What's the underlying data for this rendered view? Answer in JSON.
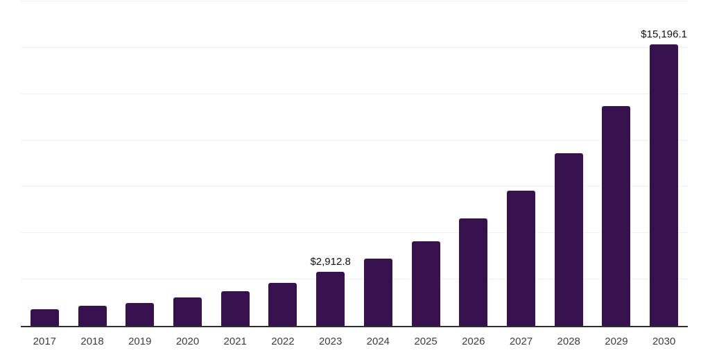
{
  "chart_data": {
    "type": "bar",
    "title": "",
    "xlabel": "",
    "ylabel": "",
    "categories": [
      "2017",
      "2018",
      "2019",
      "2020",
      "2021",
      "2022",
      "2023",
      "2024",
      "2025",
      "2026",
      "2027",
      "2028",
      "2029",
      "2030"
    ],
    "values": [
      900,
      1070,
      1250,
      1520,
      1870,
      2310,
      2912.8,
      3640,
      4550,
      5800,
      7280,
      9300,
      11870,
      15196.1
    ],
    "data_labels": [
      "",
      "",
      "",
      "",
      "",
      "",
      "$2,912.8",
      "",
      "",
      "",
      "",
      "",
      "",
      "$15,196.1"
    ],
    "ylim": [
      0,
      17500
    ],
    "gridline_interval": 2500,
    "grid": true,
    "legend": false,
    "y_axis_labels_shown": false,
    "colors": {
      "bar": "#36114d",
      "axis": "#2e2e2e",
      "gridline": "#efefef",
      "data_label": "#111111",
      "tick_label": "#3d3d3d",
      "background": "#ffffff"
    }
  }
}
